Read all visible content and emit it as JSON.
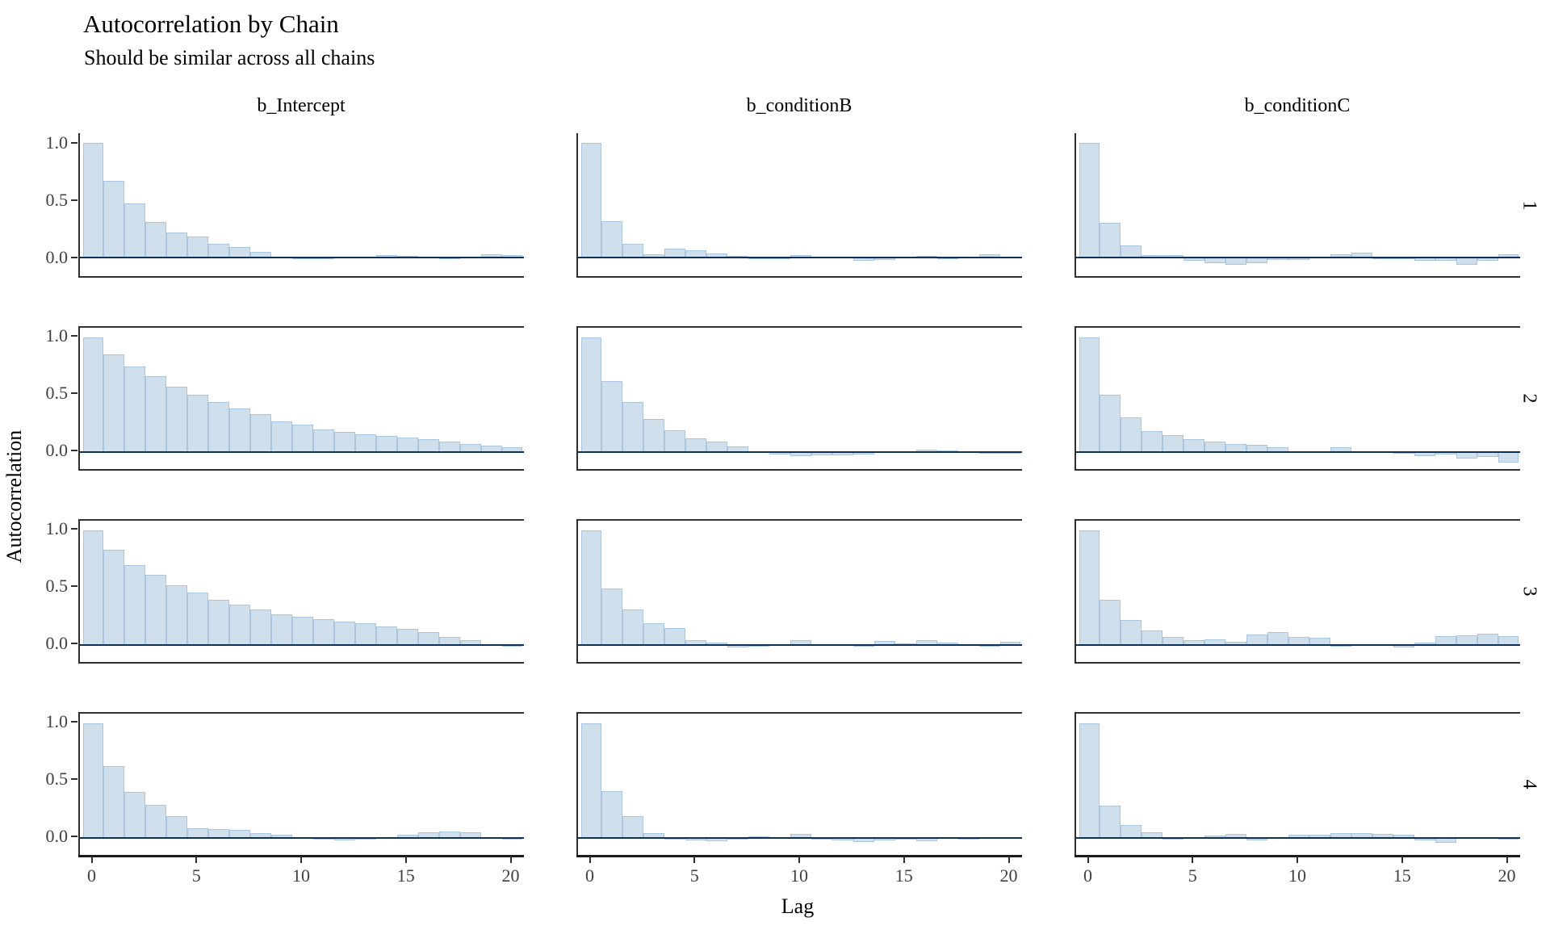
{
  "title": "Autocorrelation by Chain",
  "subtitle": "Should be similar across all chains",
  "chart_data": {
    "type": "bar",
    "title": "Autocorrelation by Chain",
    "subtitle": "Should be similar across all chains",
    "xlabel": "Lag",
    "ylabel": "Autocorrelation",
    "facet_columns": [
      "b_Intercept",
      "b_conditionB",
      "b_conditionC"
    ],
    "facet_rows": [
      "1",
      "2",
      "3",
      "4"
    ],
    "lags": [
      0,
      1,
      2,
      3,
      4,
      5,
      6,
      7,
      8,
      9,
      10,
      11,
      12,
      13,
      14,
      15,
      16,
      17,
      18,
      19,
      20
    ],
    "x_ticks": [
      0,
      5,
      10,
      15,
      20
    ],
    "y_tick_labels": [
      "1.0",
      "0.5",
      "0.0"
    ],
    "y_tick_values": [
      1.0,
      0.5,
      0.0
    ],
    "ylim": [
      -0.17,
      1.09
    ],
    "grid": "off",
    "legend": "none",
    "series": [
      {
        "parameter": "b_Intercept",
        "chain": "1",
        "values": [
          1.0,
          0.67,
          0.47,
          0.31,
          0.22,
          0.18,
          0.12,
          0.09,
          0.05,
          0.0,
          -0.015,
          -0.015,
          0.0,
          0.005,
          0.02,
          0.015,
          0.0,
          -0.005,
          0.0,
          0.025,
          0.02
        ]
      },
      {
        "parameter": "b_conditionB",
        "chain": "1",
        "values": [
          1.0,
          0.32,
          0.12,
          0.025,
          0.075,
          0.06,
          0.035,
          0.015,
          -0.01,
          -0.005,
          0.02,
          0.0,
          0.0,
          -0.03,
          -0.02,
          0.01,
          0.015,
          -0.01,
          0.005,
          0.03,
          0.005
        ]
      },
      {
        "parameter": "b_conditionC",
        "chain": "1",
        "values": [
          1.0,
          0.3,
          0.105,
          0.02,
          0.02,
          -0.03,
          -0.05,
          -0.06,
          -0.05,
          -0.02,
          -0.02,
          0.01,
          0.03,
          0.04,
          -0.01,
          -0.01,
          -0.03,
          -0.03,
          -0.06,
          -0.03,
          0.03
        ]
      },
      {
        "parameter": "b_Intercept",
        "chain": "2",
        "values": [
          1.0,
          0.85,
          0.75,
          0.66,
          0.57,
          0.5,
          0.44,
          0.38,
          0.33,
          0.27,
          0.24,
          0.2,
          0.175,
          0.155,
          0.14,
          0.125,
          0.11,
          0.095,
          0.07,
          0.055,
          0.04
        ]
      },
      {
        "parameter": "b_conditionB",
        "chain": "2",
        "values": [
          1.0,
          0.62,
          0.44,
          0.29,
          0.19,
          0.12,
          0.09,
          0.05,
          0.0,
          -0.02,
          -0.035,
          -0.025,
          -0.025,
          -0.02,
          0.0,
          0.01,
          0.02,
          0.015,
          0.005,
          -0.01,
          -0.005
        ]
      },
      {
        "parameter": "b_conditionC",
        "chain": "2",
        "values": [
          1.0,
          0.5,
          0.3,
          0.18,
          0.145,
          0.11,
          0.09,
          0.07,
          0.065,
          0.045,
          0.005,
          0.0,
          0.04,
          0.01,
          0.0,
          -0.01,
          -0.035,
          -0.02,
          -0.055,
          -0.04,
          -0.095
        ]
      },
      {
        "parameter": "b_Intercept",
        "chain": "3",
        "values": [
          1.0,
          0.83,
          0.7,
          0.61,
          0.52,
          0.455,
          0.395,
          0.355,
          0.31,
          0.27,
          0.25,
          0.225,
          0.205,
          0.19,
          0.165,
          0.14,
          0.11,
          0.07,
          0.04,
          0.01,
          -0.01
        ]
      },
      {
        "parameter": "b_conditionB",
        "chain": "3",
        "values": [
          1.0,
          0.49,
          0.31,
          0.19,
          0.145,
          0.045,
          0.02,
          -0.02,
          -0.015,
          0.005,
          0.04,
          0.01,
          0.0,
          -0.01,
          0.035,
          0.015,
          0.045,
          0.02,
          0.0,
          -0.01,
          0.03
        ]
      },
      {
        "parameter": "b_conditionC",
        "chain": "3",
        "values": [
          1.0,
          0.395,
          0.215,
          0.13,
          0.07,
          0.04,
          0.05,
          0.03,
          0.09,
          0.115,
          0.07,
          0.06,
          -0.015,
          0.0,
          0.01,
          -0.02,
          0.02,
          0.08,
          0.085,
          0.1,
          0.075
        ]
      },
      {
        "parameter": "b_Intercept",
        "chain": "4",
        "values": [
          1.0,
          0.63,
          0.4,
          0.29,
          0.19,
          0.085,
          0.08,
          0.07,
          0.04,
          0.025,
          0.01,
          -0.01,
          -0.02,
          -0.015,
          0.0,
          0.03,
          0.05,
          0.055,
          0.05,
          0.01,
          -0.005
        ]
      },
      {
        "parameter": "b_conditionB",
        "chain": "4",
        "values": [
          1.0,
          0.405,
          0.19,
          0.04,
          -0.01,
          -0.02,
          -0.025,
          -0.015,
          0.015,
          0.0,
          0.035,
          -0.01,
          -0.02,
          -0.035,
          -0.02,
          -0.01,
          -0.03,
          0.0,
          -0.01,
          0.0,
          0.005
        ]
      },
      {
        "parameter": "b_conditionC",
        "chain": "4",
        "values": [
          1.0,
          0.28,
          0.11,
          0.05,
          -0.005,
          0.005,
          0.02,
          0.035,
          -0.02,
          0.0,
          0.025,
          0.03,
          0.045,
          0.04,
          0.035,
          0.025,
          -0.02,
          -0.04,
          0.0,
          0.0,
          -0.015
        ]
      }
    ],
    "colors": {
      "bar_fill": "#cfdfeb",
      "bar_border": "#aac6de",
      "zero_line": "#0e3158",
      "axis_line": "#2f2f2f",
      "tick_text": "#404040",
      "text": "#000000"
    }
  }
}
